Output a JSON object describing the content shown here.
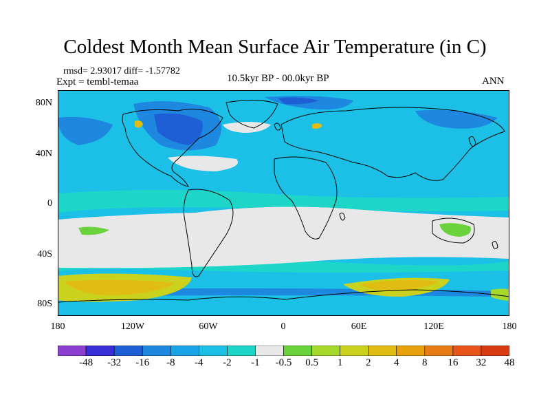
{
  "title": "Coldest Month Mean Surface Air Temperature (in C)",
  "stats": "rmsd= 2.93017 diff= -1.57782",
  "experiment": "Expt = tembl-temaa",
  "period": "10.5kyr BP - 00.0kyr BP",
  "season": "ANN",
  "lat_labels": [
    "80N",
    "40N",
    "0",
    "40S",
    "80S"
  ],
  "lon_labels": [
    "180",
    "120W",
    "60W",
    "0",
    "60E",
    "120E",
    "180"
  ],
  "colorbar": {
    "labels": [
      "-48",
      "-32",
      "-16",
      "-8",
      "-4",
      "-2",
      "-1",
      "-0.5",
      "0.5",
      "1",
      "2",
      "4",
      "8",
      "16",
      "32",
      "48"
    ],
    "colors": [
      "#8a3fd0",
      "#3a2ed8",
      "#1f5fd6",
      "#1e88e0",
      "#19a3e8",
      "#1cc0e6",
      "#1dd6c8",
      "#e8e8e8",
      "#6ad23a",
      "#a6d92b",
      "#cbd21e",
      "#e0bd12",
      "#e8a00d",
      "#e97b14",
      "#e6541a",
      "#d83a12"
    ]
  },
  "palette": {
    "ocean_main": "#1cc0e6",
    "ocean_light": "#1dd6c8",
    "near_zero": "#e8e8e8",
    "cold": "#1e88e0",
    "very_cold": "#1f5fd6",
    "warm_light": "#6ad23a",
    "warm": "#a6d92b",
    "warmer": "#cbd21e",
    "hot": "#e0bd12"
  }
}
